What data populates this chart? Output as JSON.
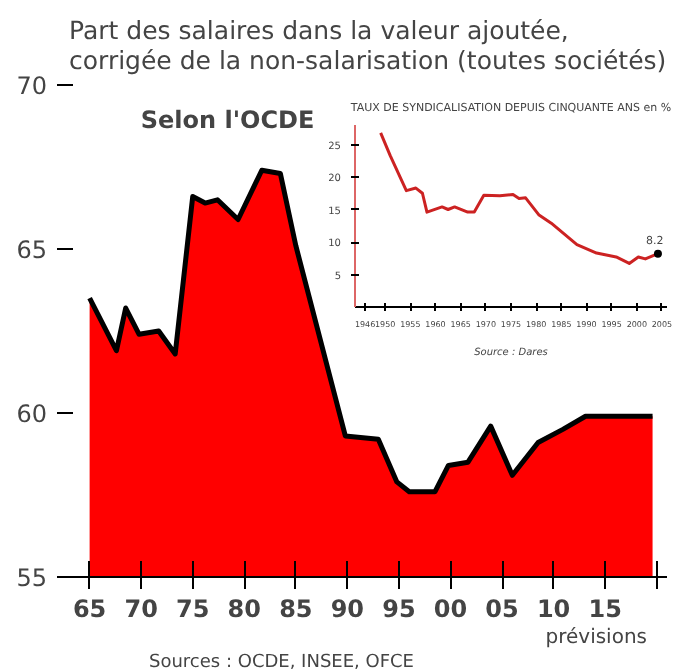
{
  "chart_data": [
    {
      "type": "area",
      "title": "Part des salaires dans la valeur ajoutée, corrigée de la non-salarisation (toutes sociétés)",
      "subtitle": "Selon l'OCDE",
      "x": [
        1965,
        1967.6,
        1968.5,
        1969.8,
        1971.7,
        1973.3,
        1975,
        1976.2,
        1977.4,
        1979.4,
        1981.7,
        1983.5,
        1985,
        1989.8,
        1993,
        1994.8,
        1996,
        1998.5,
        1999.8,
        2001.7,
        2003.9,
        2006,
        2008.5,
        2010.9,
        2013.1,
        2019.6
      ],
      "series": [
        {
          "color": "#ff0000",
          "values": [
            63.5,
            61.9,
            63.2,
            62.4,
            62.5,
            61.8,
            66.6,
            66.4,
            66.5,
            65.9,
            67.4,
            67.3,
            65.1,
            59.3,
            59.2,
            57.9,
            57.6,
            57.6,
            58.4,
            58.5,
            59.6,
            58.1,
            59.1,
            59.5,
            59.9,
            59.9
          ]
        }
      ],
      "xlim": [
        1963,
        2021
      ],
      "ylim": [
        55,
        70
      ],
      "xticks": [
        {
          "value": 1965,
          "label": "65"
        },
        {
          "value": 1970,
          "label": "70"
        },
        {
          "value": 1975,
          "label": "75"
        },
        {
          "value": 1980,
          "label": "80"
        },
        {
          "value": 1985,
          "label": "85"
        },
        {
          "value": 1990,
          "label": "90"
        },
        {
          "value": 1995,
          "label": "95"
        },
        {
          "value": 2000,
          "label": "00"
        },
        {
          "value": 2005,
          "label": "05"
        },
        {
          "value": 2010,
          "label": "10"
        },
        {
          "value": 2015,
          "label": "15"
        },
        {
          "value": 2020,
          "label": null
        }
      ],
      "yticks": [
        55,
        60,
        65,
        70
      ],
      "annotations": [
        "prévisions",
        "Sources : OCDE, INSEE, OFCE"
      ]
    },
    {
      "type": "line",
      "title": "TAUX DE SYNDICALISATION DEPUIS CINQUANTE ANS en %",
      "x": [
        1949.1,
        1951,
        1954.2,
        1956.1,
        1957.4,
        1958.3,
        1961.3,
        1962.5,
        1963.8,
        1966.4,
        1967.7,
        1969.6,
        1972.8,
        1975.4,
        1976.6,
        1977.9,
        1980.5,
        1983,
        1988.1,
        1992,
        1995.9,
        1998.5,
        2000.3,
        2001.7,
        2004.2
      ],
      "series": [
        {
          "color": "#cc2222",
          "values": [
            26.8,
            23.3,
            17.9,
            18.3,
            17.5,
            14.6,
            15.4,
            15,
            15.4,
            14.6,
            14.6,
            17.2,
            17.1,
            17.3,
            16.7,
            16.8,
            14.2,
            12.9,
            9.6,
            8.3,
            7.7,
            6.7,
            7.7,
            7.4,
            8.2
          ]
        }
      ],
      "xlim": [
        1944,
        2006
      ],
      "ylim": [
        0,
        28
      ],
      "xticks": [
        1946,
        1950,
        1955,
        1960,
        1965,
        1970,
        1975,
        1980,
        1985,
        1990,
        1995,
        2000,
        2005
      ],
      "yticks": [
        5,
        10,
        15,
        20,
        25
      ],
      "annotations": [
        {
          "text": "8.2",
          "x": 2004.2,
          "y": 8.2
        },
        "Source : Dares"
      ]
    }
  ]
}
